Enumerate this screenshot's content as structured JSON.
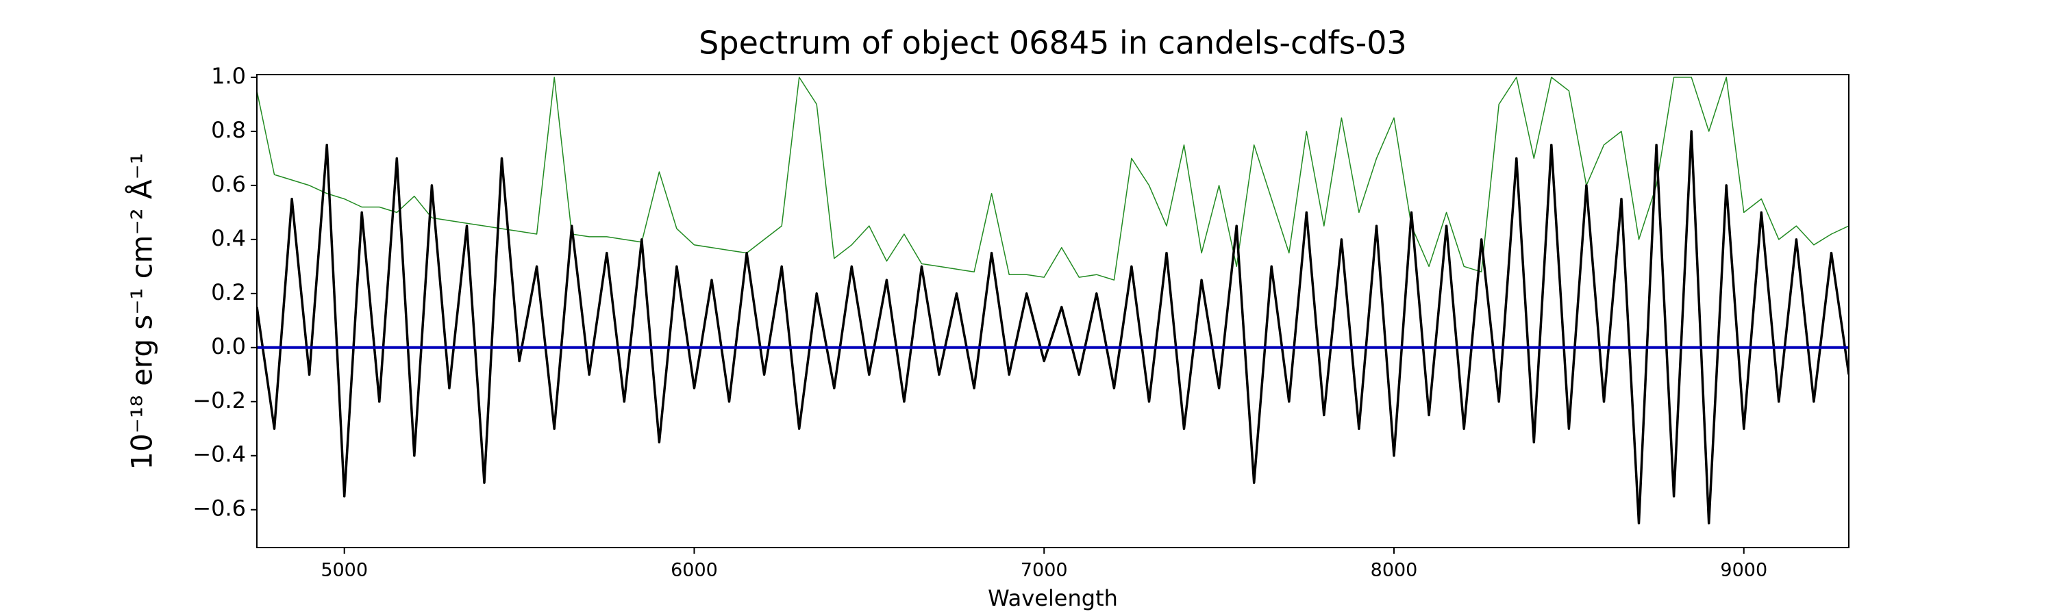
{
  "chart_data": {
    "type": "line",
    "title": "Spectrum of object 06845 in candels-cdfs-03",
    "x_label": "Wavelength",
    "y_label": "10⁻¹⁸ erg s⁻¹ cm⁻² Å⁻¹",
    "x": [
      4750,
      4800,
      4850,
      4900,
      4950,
      5000,
      5050,
      5100,
      5150,
      5200,
      5250,
      5300,
      5350,
      5400,
      5450,
      5500,
      5550,
      5600,
      5650,
      5700,
      5750,
      5800,
      5850,
      5900,
      5950,
      6000,
      6050,
      6100,
      6150,
      6200,
      6250,
      6300,
      6350,
      6400,
      6450,
      6500,
      6550,
      6600,
      6650,
      6700,
      6750,
      6800,
      6850,
      6900,
      6950,
      7000,
      7050,
      7100,
      7150,
      7200,
      7250,
      7300,
      7350,
      7400,
      7450,
      7500,
      7550,
      7600,
      7650,
      7700,
      7750,
      7800,
      7850,
      7900,
      7950,
      8000,
      8050,
      8100,
      8150,
      8200,
      8250,
      8300,
      8350,
      8400,
      8450,
      8500,
      8550,
      8600,
      8650,
      8700,
      8750,
      8800,
      8850,
      8900,
      8950,
      9000,
      9050,
      9100,
      9150,
      9200,
      9250,
      9300
    ],
    "series": [
      {
        "color": "#228b22",
        "width": 1.5,
        "values": [
          0.95,
          0.64,
          0.62,
          0.6,
          0.57,
          0.55,
          0.52,
          0.52,
          0.5,
          0.56,
          0.48,
          0.47,
          0.46,
          0.45,
          0.44,
          0.43,
          0.42,
          1.0,
          0.42,
          0.41,
          0.41,
          0.4,
          0.39,
          0.65,
          0.44,
          0.38,
          0.37,
          0.36,
          0.35,
          0.4,
          0.45,
          1.0,
          0.9,
          0.33,
          0.38,
          0.45,
          0.32,
          0.42,
          0.31,
          0.3,
          0.29,
          0.28,
          0.57,
          0.27,
          0.27,
          0.26,
          0.37,
          0.26,
          0.27,
          0.25,
          0.7,
          0.6,
          0.45,
          0.75,
          0.35,
          0.6,
          0.3,
          0.75,
          0.55,
          0.35,
          0.8,
          0.45,
          0.85,
          0.5,
          0.7,
          0.85,
          0.45,
          0.3,
          0.5,
          0.3,
          0.28,
          0.9,
          1.0,
          0.7,
          1.0,
          0.95,
          0.6,
          0.75,
          0.8,
          0.4,
          0.6,
          1.0,
          1.0,
          0.8,
          1.0,
          0.5,
          0.55,
          0.4,
          0.45,
          0.38,
          0.42,
          0.45
        ]
      },
      {
        "color": "#000000",
        "width": 3.5,
        "values": [
          0.15,
          -0.3,
          0.55,
          -0.1,
          0.75,
          -0.55,
          0.5,
          -0.2,
          0.7,
          -0.4,
          0.6,
          -0.15,
          0.45,
          -0.5,
          0.7,
          -0.05,
          0.3,
          -0.3,
          0.45,
          -0.1,
          0.35,
          -0.2,
          0.4,
          -0.35,
          0.3,
          -0.15,
          0.25,
          -0.2,
          0.35,
          -0.1,
          0.3,
          -0.3,
          0.2,
          -0.15,
          0.3,
          -0.1,
          0.25,
          -0.2,
          0.3,
          -0.1,
          0.2,
          -0.15,
          0.35,
          -0.1,
          0.2,
          -0.05,
          0.15,
          -0.1,
          0.2,
          -0.15,
          0.3,
          -0.2,
          0.35,
          -0.3,
          0.25,
          -0.15,
          0.45,
          -0.5,
          0.3,
          -0.2,
          0.5,
          -0.25,
          0.4,
          -0.3,
          0.45,
          -0.4,
          0.5,
          -0.25,
          0.45,
          -0.3,
          0.4,
          -0.2,
          0.7,
          -0.35,
          0.75,
          -0.3,
          0.6,
          -0.2,
          0.55,
          -0.65,
          0.75,
          -0.55,
          0.8,
          -0.65,
          0.6,
          -0.3,
          0.5,
          -0.2,
          0.4,
          -0.2,
          0.35,
          -0.1
        ]
      }
    ],
    "hline": {
      "value": 0,
      "color": "#0000bb"
    },
    "xlim": [
      4750,
      9300
    ],
    "ylim": [
      -0.74,
      1.01
    ],
    "xticks": [
      5000,
      6000,
      7000,
      8000,
      9000
    ],
    "yticks": [
      {
        "value": -0.6,
        "label": "−0.6"
      },
      {
        "value": -0.4,
        "label": "−0.4"
      },
      {
        "value": -0.2,
        "label": "−0.2"
      },
      {
        "value": 0,
        "label": "0.0"
      },
      {
        "value": 0.2,
        "label": "0.2"
      },
      {
        "value": 0.4,
        "label": "0.4"
      },
      {
        "value": 0.6,
        "label": "0.6"
      },
      {
        "value": 0.8,
        "label": "0.8"
      },
      {
        "value": 1.0,
        "label": "1.0"
      }
    ]
  }
}
